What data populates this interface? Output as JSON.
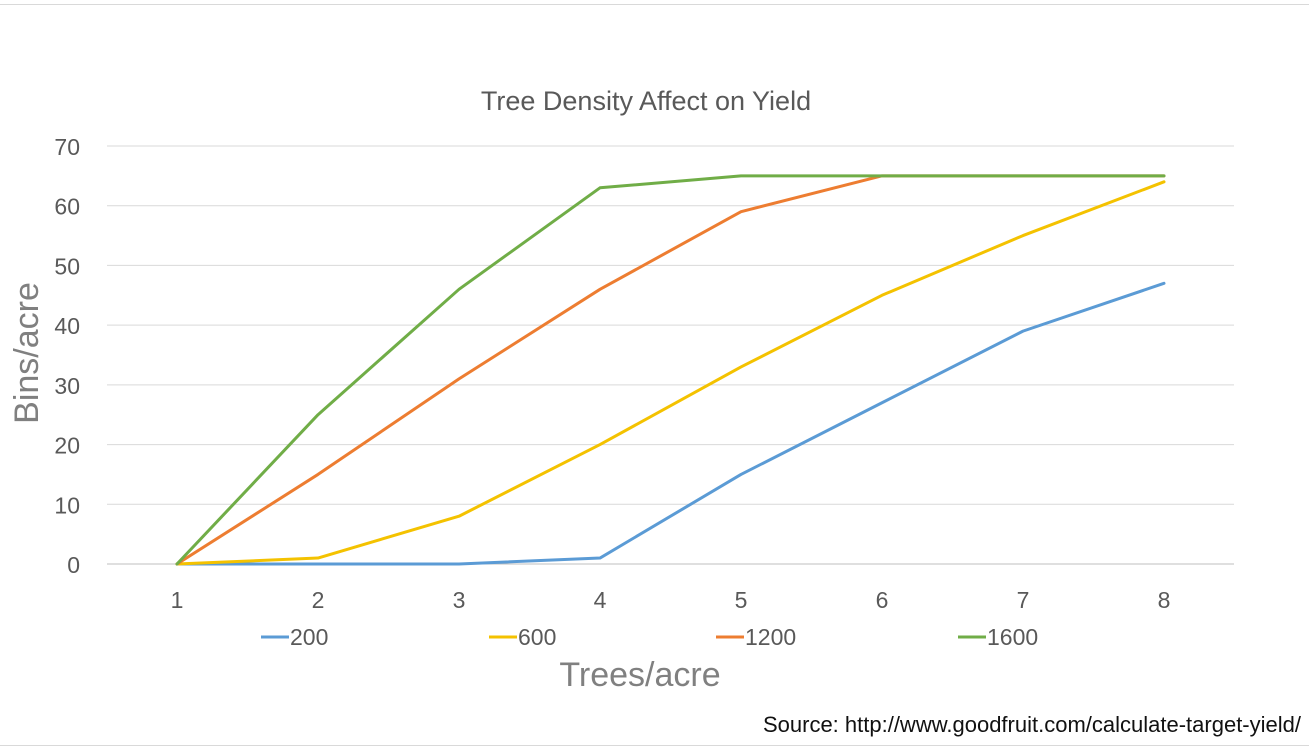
{
  "chart_data": {
    "type": "line",
    "title": "Tree Density Affect on Yield",
    "xlabel": "Trees/acre",
    "ylabel": "Bins/acre",
    "categories": [
      "1",
      "2",
      "3",
      "4",
      "5",
      "6",
      "7",
      "8"
    ],
    "ylim": [
      0,
      70
    ],
    "yticks": [
      "0",
      "10",
      "20",
      "30",
      "40",
      "50",
      "60",
      "70"
    ],
    "grid": true,
    "legend": "bottom",
    "series": [
      {
        "name": "200",
        "color": "#5b9bd5",
        "values": [
          0,
          0,
          0,
          1,
          15,
          27,
          39,
          47
        ]
      },
      {
        "name": "600",
        "color": "#f4c200",
        "values": [
          0,
          1,
          8,
          20,
          33,
          45,
          55,
          64
        ]
      },
      {
        "name": "1200",
        "color": "#ed7d31",
        "values": [
          0,
          15,
          31,
          46,
          59,
          65,
          65,
          65
        ]
      },
      {
        "name": "1600",
        "color": "#70ad47",
        "values": [
          0,
          25,
          46,
          63,
          65,
          65,
          65,
          65
        ]
      }
    ]
  },
  "source_note": "Source: http://www.goodfruit.com/calculate-target-yield/"
}
